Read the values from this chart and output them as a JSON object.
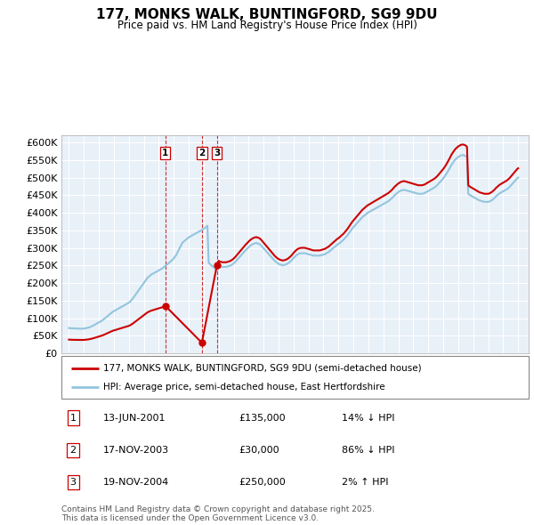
{
  "title": "177, MONKS WALK, BUNTINGFORD, SG9 9DU",
  "subtitle": "Price paid vs. HM Land Registry's House Price Index (HPI)",
  "ylim": [
    0,
    620000
  ],
  "yticks": [
    0,
    50000,
    100000,
    150000,
    200000,
    250000,
    300000,
    350000,
    400000,
    450000,
    500000,
    550000,
    600000
  ],
  "ytick_labels": [
    "£0",
    "£50K",
    "£100K",
    "£150K",
    "£200K",
    "£250K",
    "£300K",
    "£350K",
    "£400K",
    "£450K",
    "£500K",
    "£550K",
    "£600K"
  ],
  "xlim_start": 1994.5,
  "xlim_end": 2025.7,
  "hpi_color": "#92c5de",
  "property_color": "#cc0000",
  "transaction_color": "#cc0000",
  "chart_bg": "#e8f0f8",
  "transactions": [
    {
      "date_num": 2001.44,
      "price": 135000,
      "label": "1",
      "date_str": "13-JUN-2001",
      "price_str": "£135,000",
      "hpi_rel": "14% ↓ HPI"
    },
    {
      "date_num": 2003.88,
      "price": 30000,
      "label": "2",
      "date_str": "17-NOV-2003",
      "price_str": "£30,000",
      "hpi_rel": "86% ↓ HPI"
    },
    {
      "date_num": 2004.88,
      "price": 250000,
      "label": "3",
      "date_str": "19-NOV-2004",
      "price_str": "£250,000",
      "hpi_rel": "2% ↑ HPI"
    }
  ],
  "legend_property": "177, MONKS WALK, BUNTINGFORD, SG9 9DU (semi-detached house)",
  "legend_hpi": "HPI: Average price, semi-detached house, East Hertfordshire",
  "footer": "Contains HM Land Registry data © Crown copyright and database right 2025.\nThis data is licensed under the Open Government Licence v3.0.",
  "hpi_data_years": [
    1995.0,
    1995.083,
    1995.167,
    1995.25,
    1995.333,
    1995.417,
    1995.5,
    1995.583,
    1995.667,
    1995.75,
    1995.833,
    1995.917,
    1996.0,
    1996.083,
    1996.167,
    1996.25,
    1996.333,
    1996.417,
    1996.5,
    1996.583,
    1996.667,
    1996.75,
    1996.833,
    1996.917,
    1997.0,
    1997.083,
    1997.167,
    1997.25,
    1997.333,
    1997.417,
    1997.5,
    1997.583,
    1997.667,
    1997.75,
    1997.833,
    1997.917,
    1998.0,
    1998.083,
    1998.167,
    1998.25,
    1998.333,
    1998.417,
    1998.5,
    1998.583,
    1998.667,
    1998.75,
    1998.833,
    1998.917,
    1999.0,
    1999.083,
    1999.167,
    1999.25,
    1999.333,
    1999.417,
    1999.5,
    1999.583,
    1999.667,
    1999.75,
    1999.833,
    1999.917,
    2000.0,
    2000.083,
    2000.167,
    2000.25,
    2000.333,
    2000.417,
    2000.5,
    2000.583,
    2000.667,
    2000.75,
    2000.833,
    2000.917,
    2001.0,
    2001.083,
    2001.167,
    2001.25,
    2001.333,
    2001.417,
    2001.5,
    2001.583,
    2001.667,
    2001.75,
    2001.833,
    2001.917,
    2002.0,
    2002.083,
    2002.167,
    2002.25,
    2002.333,
    2002.417,
    2002.5,
    2002.583,
    2002.667,
    2002.75,
    2002.833,
    2002.917,
    2003.0,
    2003.083,
    2003.167,
    2003.25,
    2003.333,
    2003.417,
    2003.5,
    2003.583,
    2003.667,
    2003.75,
    2003.833,
    2003.917,
    2004.0,
    2004.083,
    2004.167,
    2004.25,
    2004.333,
    2004.417,
    2004.5,
    2004.583,
    2004.667,
    2004.75,
    2004.833,
    2004.917,
    2005.0,
    2005.083,
    2005.167,
    2005.25,
    2005.333,
    2005.417,
    2005.5,
    2005.583,
    2005.667,
    2005.75,
    2005.833,
    2005.917,
    2006.0,
    2006.083,
    2006.167,
    2006.25,
    2006.333,
    2006.417,
    2006.5,
    2006.583,
    2006.667,
    2006.75,
    2006.833,
    2006.917,
    2007.0,
    2007.083,
    2007.167,
    2007.25,
    2007.333,
    2007.417,
    2007.5,
    2007.583,
    2007.667,
    2007.75,
    2007.833,
    2007.917,
    2008.0,
    2008.083,
    2008.167,
    2008.25,
    2008.333,
    2008.417,
    2008.5,
    2008.583,
    2008.667,
    2008.75,
    2008.833,
    2008.917,
    2009.0,
    2009.083,
    2009.167,
    2009.25,
    2009.333,
    2009.417,
    2009.5,
    2009.583,
    2009.667,
    2009.75,
    2009.833,
    2009.917,
    2010.0,
    2010.083,
    2010.167,
    2010.25,
    2010.333,
    2010.417,
    2010.5,
    2010.583,
    2010.667,
    2010.75,
    2010.833,
    2010.917,
    2011.0,
    2011.083,
    2011.167,
    2011.25,
    2011.333,
    2011.417,
    2011.5,
    2011.583,
    2011.667,
    2011.75,
    2011.833,
    2011.917,
    2012.0,
    2012.083,
    2012.167,
    2012.25,
    2012.333,
    2012.417,
    2012.5,
    2012.583,
    2012.667,
    2012.75,
    2012.833,
    2012.917,
    2013.0,
    2013.083,
    2013.167,
    2013.25,
    2013.333,
    2013.417,
    2013.5,
    2013.583,
    2013.667,
    2013.75,
    2013.833,
    2013.917,
    2014.0,
    2014.083,
    2014.167,
    2014.25,
    2014.333,
    2014.417,
    2014.5,
    2014.583,
    2014.667,
    2014.75,
    2014.833,
    2014.917,
    2015.0,
    2015.083,
    2015.167,
    2015.25,
    2015.333,
    2015.417,
    2015.5,
    2015.583,
    2015.667,
    2015.75,
    2015.833,
    2015.917,
    2016.0,
    2016.083,
    2016.167,
    2016.25,
    2016.333,
    2016.417,
    2016.5,
    2016.583,
    2016.667,
    2016.75,
    2016.833,
    2016.917,
    2017.0,
    2017.083,
    2017.167,
    2017.25,
    2017.333,
    2017.417,
    2017.5,
    2017.583,
    2017.667,
    2017.75,
    2017.833,
    2017.917,
    2018.0,
    2018.083,
    2018.167,
    2018.25,
    2018.333,
    2018.417,
    2018.5,
    2018.583,
    2018.667,
    2018.75,
    2018.833,
    2018.917,
    2019.0,
    2019.083,
    2019.167,
    2019.25,
    2019.333,
    2019.417,
    2019.5,
    2019.583,
    2019.667,
    2019.75,
    2019.833,
    2019.917,
    2020.0,
    2020.083,
    2020.167,
    2020.25,
    2020.333,
    2020.417,
    2020.5,
    2020.583,
    2020.667,
    2020.75,
    2020.833,
    2020.917,
    2021.0,
    2021.083,
    2021.167,
    2021.25,
    2021.333,
    2021.417,
    2021.5,
    2021.583,
    2021.667,
    2021.75,
    2021.833,
    2021.917,
    2022.0,
    2022.083,
    2022.167,
    2022.25,
    2022.333,
    2022.417,
    2022.5,
    2022.583,
    2022.667,
    2022.75,
    2022.833,
    2022.917,
    2023.0,
    2023.083,
    2023.167,
    2023.25,
    2023.333,
    2023.417,
    2023.5,
    2023.583,
    2023.667,
    2023.75,
    2023.833,
    2023.917,
    2024.0,
    2024.083,
    2024.167,
    2024.25,
    2024.333,
    2024.417,
    2024.5,
    2024.583,
    2024.667,
    2024.75,
    2024.833,
    2024.917,
    2025.0
  ],
  "hpi_data_values": [
    72000,
    71500,
    71200,
    71000,
    70800,
    70700,
    70600,
    70500,
    70400,
    70300,
    70200,
    70200,
    70500,
    71000,
    71800,
    72500,
    73500,
    75000,
    76500,
    78000,
    80000,
    82000,
    84000,
    86000,
    88000,
    90000,
    92000,
    94500,
    97000,
    100000,
    103000,
    106000,
    109000,
    112000,
    115000,
    118000,
    120000,
    122000,
    124000,
    126000,
    128000,
    130000,
    132000,
    134000,
    136000,
    138000,
    140000,
    142000,
    144000,
    147000,
    151000,
    155000,
    160000,
    165000,
    170000,
    175000,
    180000,
    185000,
    190000,
    195000,
    200000,
    205000,
    210000,
    215000,
    218000,
    221000,
    224000,
    226000,
    228000,
    230000,
    232000,
    234000,
    236000,
    238000,
    240000,
    242000,
    245000,
    248000,
    251000,
    254000,
    257000,
    260000,
    263000,
    266000,
    270000,
    275000,
    280000,
    287000,
    294000,
    301000,
    308000,
    315000,
    318000,
    321000,
    324000,
    327000,
    330000,
    332000,
    334000,
    336000,
    338000,
    340000,
    342000,
    344000,
    346000,
    348000,
    350000,
    352000,
    354000,
    357000,
    360000,
    363000,
    258000,
    254000,
    251000,
    248000,
    245000,
    242000,
    239000,
    236000,
    250000,
    248000,
    247000,
    246000,
    246000,
    246000,
    246000,
    247000,
    248000,
    249000,
    251000,
    253000,
    256000,
    259000,
    263000,
    267000,
    271000,
    275000,
    279000,
    283000,
    287000,
    291000,
    295000,
    298000,
    302000,
    305000,
    308000,
    310000,
    312000,
    313000,
    314000,
    313000,
    312000,
    310000,
    307000,
    303000,
    299000,
    295000,
    291000,
    287000,
    283000,
    279000,
    275000,
    271000,
    267000,
    263000,
    260000,
    257000,
    255000,
    253000,
    252000,
    251000,
    251000,
    252000,
    253000,
    255000,
    257000,
    260000,
    263000,
    267000,
    271000,
    275000,
    278000,
    281000,
    283000,
    284000,
    285000,
    285000,
    285000,
    285000,
    284000,
    283000,
    282000,
    281000,
    280000,
    279000,
    278000,
    278000,
    278000,
    278000,
    278000,
    278000,
    279000,
    280000,
    281000,
    282000,
    284000,
    286000,
    288000,
    291000,
    294000,
    297000,
    300000,
    303000,
    306000,
    309000,
    311000,
    314000,
    317000,
    320000,
    323000,
    327000,
    331000,
    335000,
    340000,
    345000,
    350000,
    355000,
    359000,
    363000,
    367000,
    371000,
    375000,
    379000,
    383000,
    387000,
    390000,
    393000,
    396000,
    399000,
    401000,
    403000,
    405000,
    407000,
    409000,
    411000,
    413000,
    415000,
    417000,
    419000,
    421000,
    423000,
    425000,
    427000,
    429000,
    431000,
    433000,
    436000,
    439000,
    442000,
    446000,
    450000,
    453000,
    456000,
    459000,
    461000,
    463000,
    464000,
    465000,
    465000,
    464000,
    463000,
    462000,
    461000,
    460000,
    459000,
    458000,
    457000,
    456000,
    455000,
    454000,
    454000,
    454000,
    454000,
    455000,
    456000,
    458000,
    460000,
    462000,
    464000,
    466000,
    468000,
    470000,
    472000,
    475000,
    478000,
    482000,
    486000,
    490000,
    494000,
    498000,
    503000,
    508000,
    514000,
    520000,
    526000,
    533000,
    539000,
    544000,
    549000,
    553000,
    556000,
    559000,
    561000,
    563000,
    564000,
    564000,
    563000,
    561000,
    558000,
    454000,
    451000,
    449000,
    447000,
    445000,
    443000,
    441000,
    439000,
    437000,
    435000,
    434000,
    433000,
    432000,
    431000,
    431000,
    431000,
    431000,
    432000,
    434000,
    436000,
    439000,
    442000,
    446000,
    449000,
    452000,
    455000,
    457000,
    459000,
    461000,
    463000,
    465000,
    467000,
    470000,
    473000,
    477000,
    481000,
    485000,
    489000,
    493000,
    497000,
    500000
  ]
}
